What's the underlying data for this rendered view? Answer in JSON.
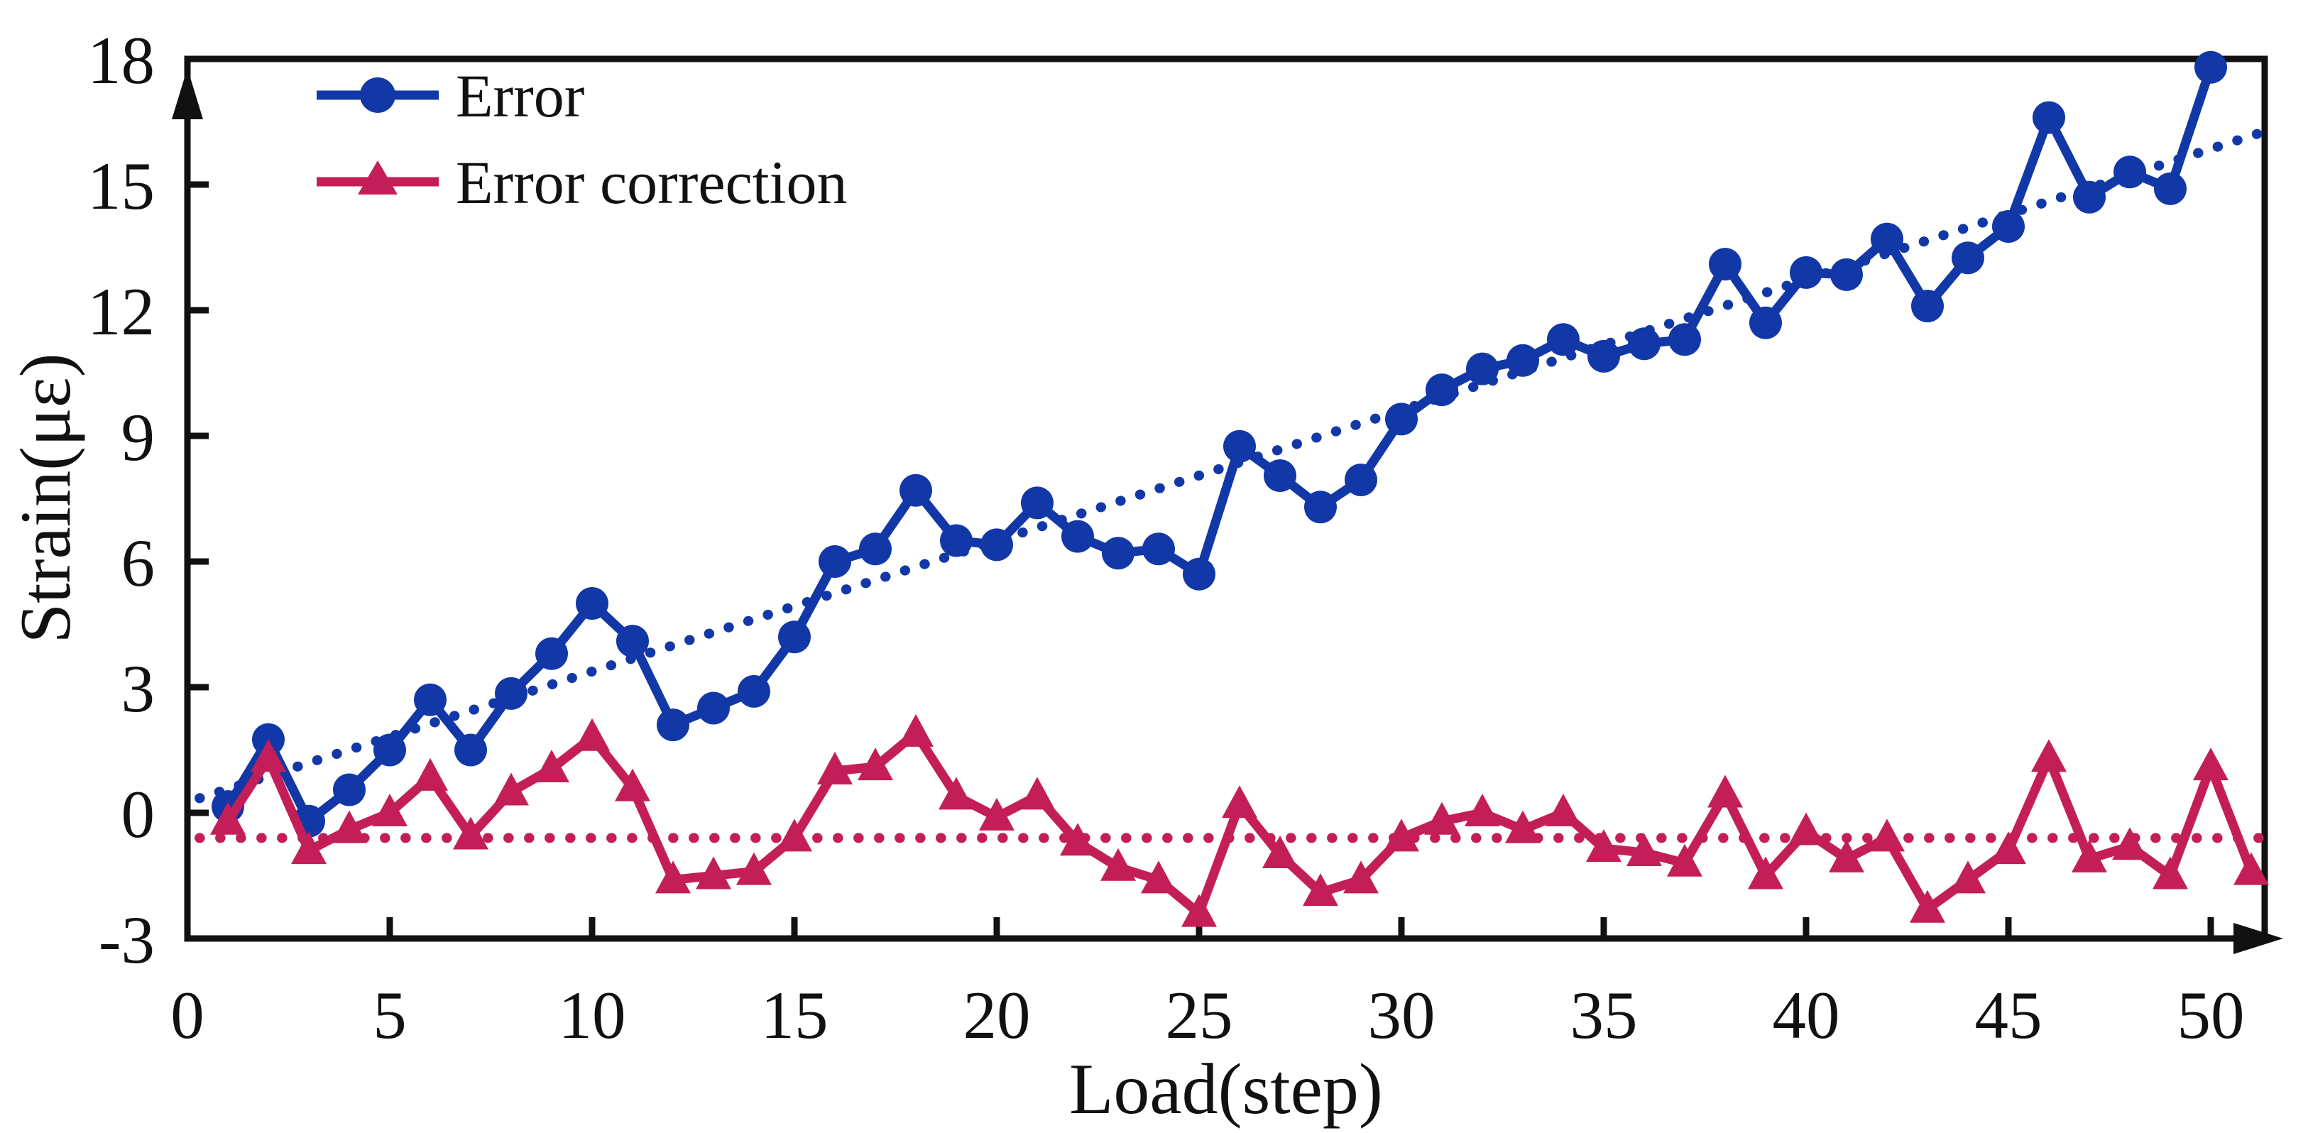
{
  "chart_data": {
    "type": "line",
    "title": "",
    "xlabel": "Load(step)",
    "ylabel": "Strain(με)",
    "xlim": [
      0,
      51.3
    ],
    "ylim": [
      -3,
      18
    ],
    "x_ticks": [
      0,
      5,
      10,
      15,
      20,
      25,
      30,
      35,
      40,
      45,
      50
    ],
    "y_ticks": [
      18,
      15,
      12,
      9,
      6,
      3,
      0,
      -3
    ],
    "grid": false,
    "legend_position": "top-left",
    "axis_color": "#111111",
    "series": [
      {
        "name": "Error",
        "color": "#1238a8",
        "marker": "circle",
        "line_style": "solid",
        "x_start": 1,
        "x_step": 1,
        "values": [
          0.15,
          1.75,
          -0.2,
          0.55,
          1.5,
          2.7,
          1.5,
          2.85,
          3.8,
          5.0,
          4.1,
          2.1,
          2.5,
          2.9,
          4.2,
          6.0,
          6.3,
          7.7,
          6.5,
          6.4,
          7.4,
          6.6,
          6.2,
          6.3,
          5.7,
          8.75,
          8.05,
          7.3,
          7.95,
          9.4,
          10.1,
          10.6,
          10.8,
          11.3,
          10.9,
          11.2,
          11.3,
          13.1,
          11.7,
          12.9,
          12.85,
          13.7,
          12.1,
          13.25,
          14.0,
          16.6,
          14.7,
          15.3,
          14.9,
          17.8
        ]
      },
      {
        "name": "Error correction",
        "color": "#c41e58",
        "marker": "triangle",
        "line_style": "solid",
        "x_start": 1,
        "x_step": 1,
        "values": [
          -0.2,
          1.3,
          -0.9,
          -0.4,
          0.0,
          0.85,
          -0.55,
          0.5,
          1.05,
          1.8,
          0.6,
          -1.6,
          -1.5,
          -1.4,
          -0.6,
          1.0,
          1.1,
          1.9,
          0.4,
          -0.1,
          0.4,
          -0.7,
          -1.3,
          -1.6,
          -2.4,
          0.2,
          -1.0,
          -1.9,
          -1.6,
          -0.6,
          -0.2,
          0.0,
          -0.4,
          0.0,
          -0.85,
          -0.95,
          -1.2,
          0.45,
          -1.5,
          -0.45,
          -1.1,
          -0.6,
          -2.3,
          -1.6,
          -0.9,
          1.3,
          -1.1,
          -0.8,
          -1.5,
          1.1,
          -1.4
        ]
      }
    ],
    "trendlines": [
      {
        "for": "Error",
        "style": "dotted",
        "color": "#1238a8",
        "x1": 0.3,
        "y1": 0.35,
        "x2": 51.6,
        "y2": 16.35
      },
      {
        "for": "Error correction",
        "style": "dotted",
        "color": "#c41e58",
        "x1": 0.3,
        "y1": -0.6,
        "x2": 51.6,
        "y2": -0.6
      }
    ]
  },
  "legend": {
    "items": [
      {
        "label": "Error"
      },
      {
        "label": "Error correction"
      }
    ]
  }
}
